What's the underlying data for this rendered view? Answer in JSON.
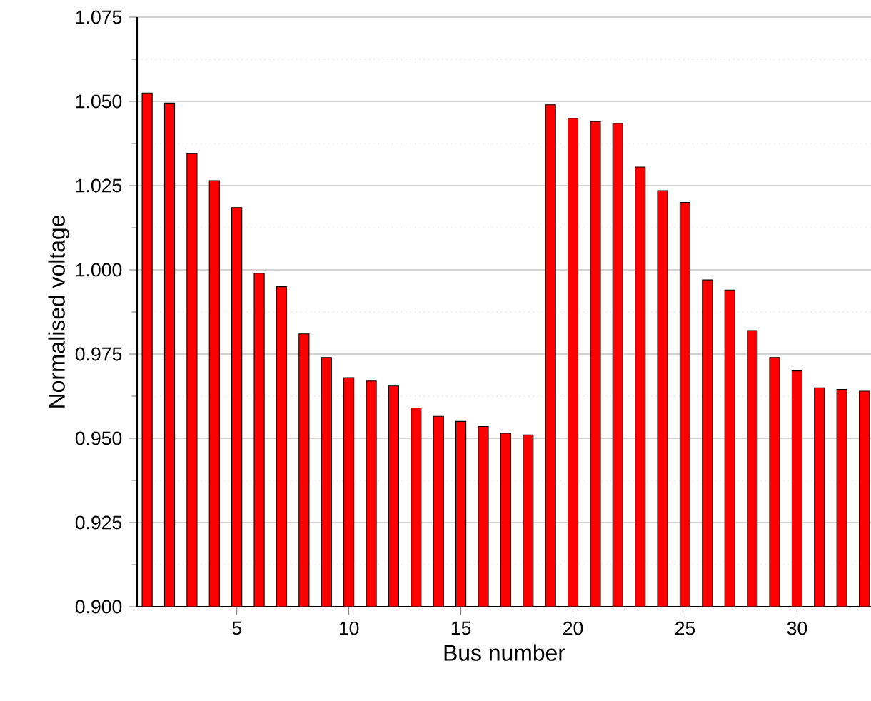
{
  "chart_data": {
    "type": "bar",
    "xlabel": "Bus number",
    "ylabel": "Normalised voltage",
    "x": [
      1,
      2,
      3,
      4,
      5,
      6,
      7,
      8,
      9,
      10,
      11,
      12,
      13,
      14,
      15,
      16,
      17,
      18,
      19,
      20,
      21,
      22,
      23,
      24,
      25,
      26,
      27,
      28,
      29,
      30,
      31,
      32,
      33
    ],
    "values": [
      1.0525,
      1.0495,
      1.0345,
      1.0265,
      1.0185,
      0.999,
      0.995,
      0.981,
      0.974,
      0.968,
      0.967,
      0.9655,
      0.959,
      0.9565,
      0.955,
      0.9535,
      0.9515,
      0.951,
      1.049,
      1.045,
      1.044,
      1.0435,
      1.0305,
      1.0235,
      1.02,
      0.997,
      0.994,
      0.982,
      0.974,
      0.97,
      0.965,
      0.9645,
      0.964
    ],
    "color": "#ff0000",
    "xlim": [
      0.55,
      33.3
    ],
    "xticks": [
      5,
      10,
      15,
      20,
      25,
      30
    ],
    "ylim": [
      0.9,
      1.075
    ],
    "yticks": [
      {
        "value": 0.9,
        "label": "0.900"
      },
      {
        "value": 0.925,
        "label": "0.925"
      },
      {
        "value": 0.95,
        "label": "0.950"
      },
      {
        "value": 0.975,
        "label": "0.975"
      },
      {
        "value": 1.0,
        "label": "1.000"
      },
      {
        "value": 1.025,
        "label": "1.025"
      },
      {
        "value": 1.05,
        "label": "1.050"
      },
      {
        "value": 1.075,
        "label": "1.075"
      }
    ],
    "grid": "y"
  }
}
